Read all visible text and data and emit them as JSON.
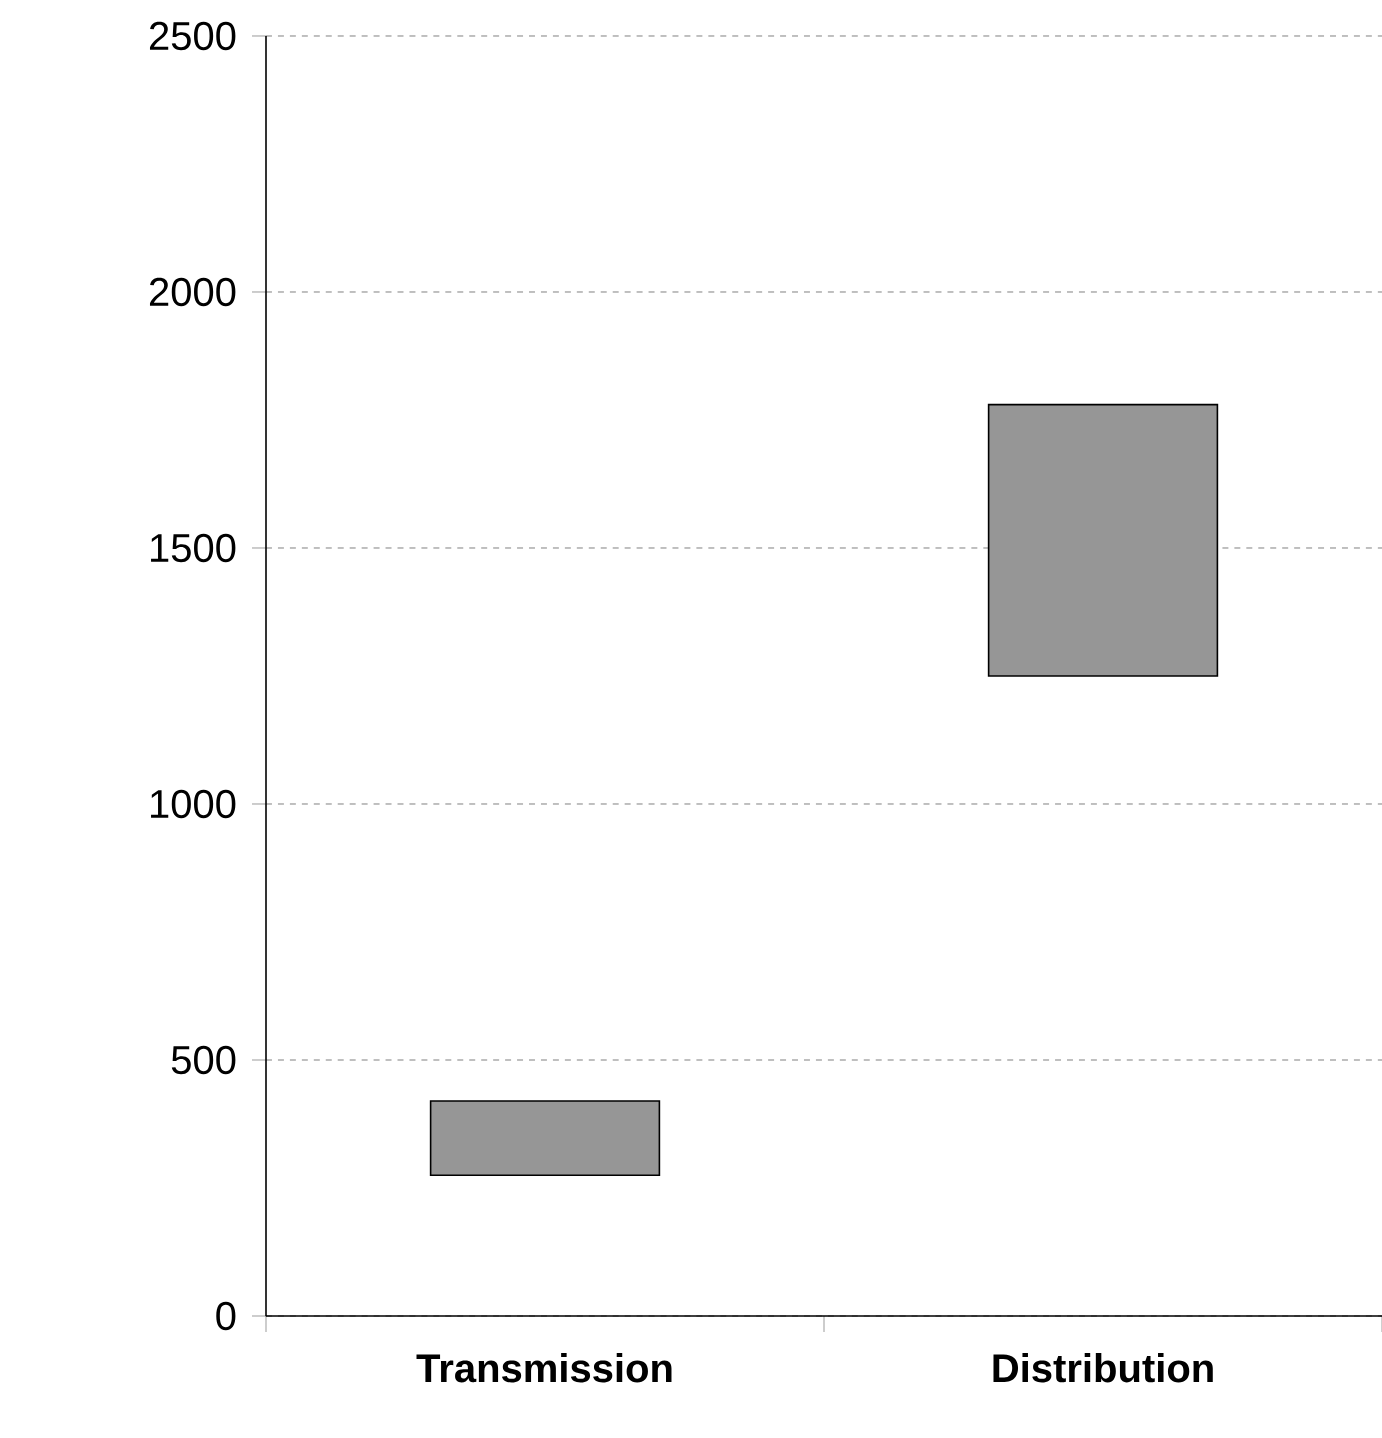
{
  "chart_data": {
    "type": "bar",
    "categories": [
      "**Transmission**",
      "**Distribution**"
    ],
    "base": [
      275,
      1250
    ],
    "values": [
      145,
      530
    ],
    "color": "#969696",
    "ylim": [
      0,
      2500
    ],
    "yticks": [
      0,
      500,
      1000,
      1500,
      2000,
      2500
    ],
    "grid": "y"
  }
}
